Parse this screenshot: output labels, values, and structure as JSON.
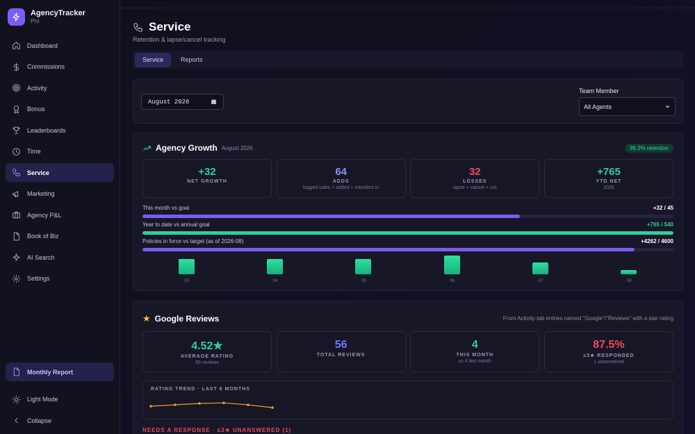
{
  "app": {
    "name": "AgencyTracker",
    "tier": "Pro"
  },
  "sidebar": {
    "items": [
      {
        "label": "Dashboard",
        "icon": "home-icon"
      },
      {
        "label": "Commissions",
        "icon": "dollar-icon"
      },
      {
        "label": "Activity",
        "icon": "target-icon"
      },
      {
        "label": "Bonus",
        "icon": "award-icon"
      },
      {
        "label": "Leaderboards",
        "icon": "trophy-icon"
      },
      {
        "label": "Time",
        "icon": "clock-icon"
      },
      {
        "label": "Service",
        "icon": "phone-icon"
      },
      {
        "label": "Marketing",
        "icon": "megaphone-icon"
      },
      {
        "label": "Agency P&L",
        "icon": "briefcase-icon"
      },
      {
        "label": "Book of Biz",
        "icon": "document-icon"
      },
      {
        "label": "AI Search",
        "icon": "sparkle-icon"
      },
      {
        "label": "Settings",
        "icon": "gear-icon"
      }
    ],
    "active": "Service",
    "monthly_report": "Monthly Report",
    "light_mode": "Light Mode",
    "collapse": "Collapse"
  },
  "page": {
    "title": "Service",
    "subtitle": "Retention & lapse/cancel tracking"
  },
  "tabs": [
    {
      "label": "Service"
    },
    {
      "label": "Reports"
    }
  ],
  "filters": {
    "month_value": "August 2026",
    "team_label": "Team Member",
    "team_value": "All Agents"
  },
  "growth": {
    "title": "Agency Growth",
    "date": "August 2026",
    "retention_badge": "99.2% retention",
    "stats": [
      {
        "value": "+32",
        "label": "NET GROWTH",
        "sub": ""
      },
      {
        "value": "64",
        "label": "ADDS",
        "sub": "logged sales + added + transfers in"
      },
      {
        "value": "32",
        "label": "LOSSES",
        "sub": "lapse + cancel + out"
      },
      {
        "value": "+765",
        "label": "YTD NET",
        "sub": "2026"
      }
    ],
    "progress": [
      {
        "label": "This month vs goal",
        "value_text": "+32 / 45",
        "fraction": 0.711
      },
      {
        "label": "Year to date vs annual goal",
        "value_text": "+765 / 540",
        "fraction": 1.0
      },
      {
        "label": "Policies in force vs target (as of 2026-08)",
        "value_text": "+4262 / 4600",
        "fraction": 0.927
      }
    ],
    "monthly": {
      "months": [
        "03",
        "04",
        "05",
        "06",
        "07",
        "08"
      ],
      "values": [
        0.8,
        0.8,
        0.8,
        1.0,
        0.64,
        0.24
      ]
    }
  },
  "reviews": {
    "title": "Google Reviews",
    "note": "From Activity-tab entries named \"Google\"/\"Reviews\" with a star rating",
    "stats": [
      {
        "value": "4.52★",
        "label": "AVERAGE RATING",
        "sub": "56 reviews"
      },
      {
        "value": "56",
        "label": "TOTAL REVIEWS",
        "sub": ""
      },
      {
        "value": "4",
        "label": "THIS MONTH",
        "sub": "vs 4 last month"
      },
      {
        "value": "87.5%",
        "label": "≤3★ RESPONDED",
        "sub": "1 unanswered"
      }
    ],
    "trend_label": "RATING TREND · LAST 6 MONTHS",
    "trend_values": [
      4.5,
      4.55,
      4.6,
      4.62,
      4.55,
      4.45
    ],
    "needs_response": "NEEDS A RESPONSE · ≤3★ UNANSWERED (1)"
  },
  "colors": {
    "accent": "#7c5cf5",
    "green": "#2ed19a",
    "red": "#ef4a5c",
    "indigo": "#8b93ff",
    "amber": "#f0a020"
  }
}
